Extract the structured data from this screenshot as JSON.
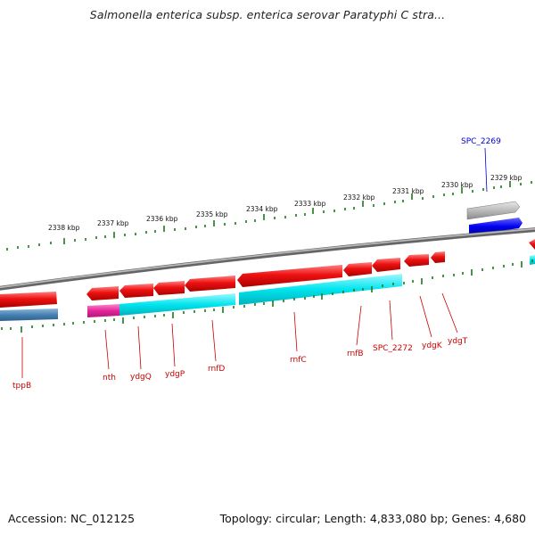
{
  "title": "Salmonella enterica subsp. enterica serovar Paratyphi C stra...",
  "footer": {
    "accession": "Accession: NC_012125",
    "topology": "Topology: circular; Length: 4,833,080 bp; Genes: 4,680"
  },
  "ticks": [
    "2338 kbp",
    "2337 kbp",
    "2336 kbp",
    "2335 kbp",
    "2334 kbp",
    "2333 kbp",
    "2332 kbp",
    "2331 kbp",
    "2330 kbp",
    "2329 kbp"
  ],
  "genes": {
    "tppB": "tppB",
    "nth": "nth",
    "ydgQ": "ydgQ",
    "ydgP": "ydgP",
    "rnfD": "rnfD",
    "rnfC": "rnfC",
    "rnfB": "rnfB",
    "SPC_2272": "SPC_2272",
    "ydgK": "ydgK",
    "ydgT": "ydgT",
    "SPC_2269": "SPC_2269"
  },
  "colors": {
    "backbone": "#888888",
    "gene_forward": "#ee1111",
    "cds_reverse": "#00e5ee",
    "tppB_cds": "#4682b4",
    "nth_cds": "#e6259b",
    "SPC_2269_gene": "#bbbbbb",
    "SPC_2269_cds": "#0000ee",
    "tick": "#1a7a1a",
    "label": "#cc0000",
    "label_highlight": "#0000cc"
  }
}
